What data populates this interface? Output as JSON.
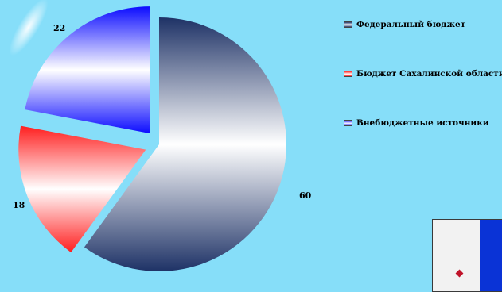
{
  "chart_data": {
    "type": "pie",
    "title": "",
    "categories": [
      "Федеральный бюджет",
      "Бюджет Сахалинской области",
      "Внебюджетные источники"
    ],
    "values": [
      60,
      18,
      22
    ],
    "data_labels": [
      "60",
      "18",
      "22"
    ],
    "exploded": true,
    "legend": "right",
    "colors": {
      "federal": "#1e3266",
      "regional": "#ff1f1f",
      "extrabudgetary": "#0c0cff",
      "background": "#86def9"
    }
  },
  "legend": {
    "items": [
      {
        "label": "Федеральный бюджет",
        "color": "#1e3266"
      },
      {
        "label": "Бюджет Сахалинской области",
        "color": "#ff1f1f"
      },
      {
        "label": "Внебюджетные источники",
        "color": "#0c0cff"
      }
    ]
  }
}
